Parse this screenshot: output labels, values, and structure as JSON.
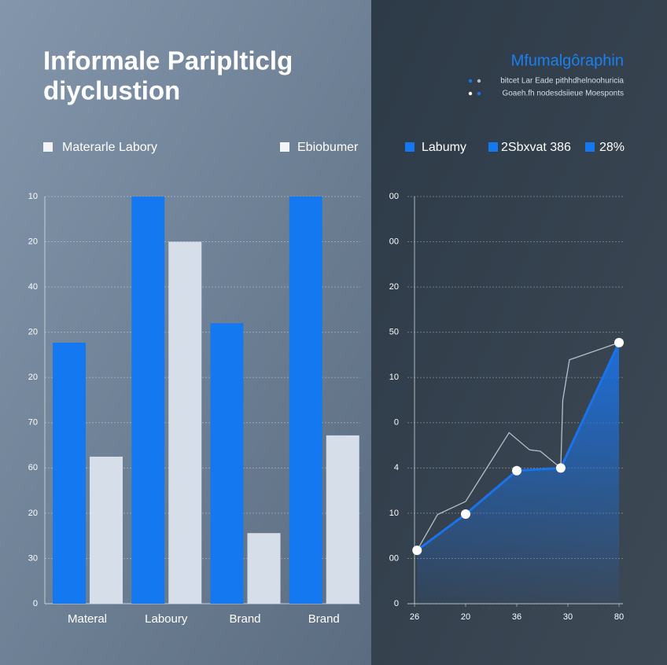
{
  "chart_data": [
    {
      "type": "bar",
      "title": [
        "Informale Pariplticlg",
        "diyclustion"
      ],
      "legend": [
        {
          "name": "Materarle Labory",
          "color": "#f2f4f7"
        },
        {
          "name": "Ebiobumer",
          "color": "#f2f4f7"
        }
      ],
      "categories": [
        "Materal",
        "Laboury",
        "Brand",
        "Brand"
      ],
      "series": [
        {
          "color": "#1479f0",
          "values": [
            5.77,
            9,
            6.2,
            9
          ]
        },
        {
          "color": "#d6dfe9",
          "values": [
            3.25,
            8.0,
            1.56,
            3.72
          ]
        }
      ],
      "ylim": [
        0,
        9
      ],
      "yticks": [
        0,
        {
          "value": 1,
          "label": "30"
        },
        {
          "value": 2,
          "label": "20"
        },
        {
          "value": 3,
          "label": "60"
        },
        {
          "value": 4,
          "label": "70"
        },
        {
          "value": 5,
          "label": "20"
        },
        {
          "value": 6,
          "label": "20"
        },
        {
          "value": 7,
          "label": "40"
        },
        {
          "value": 8,
          "label": "20"
        },
        {
          "value": 9,
          "label": "10"
        }
      ],
      "grid": true
    },
    {
      "type": "line",
      "title": "Mfumalgôraphin",
      "notes": [
        "bitcet Lar Eade pithhdhelnoohuricia",
        "Goaeh.fh nodesdsiieue Moesponts"
      ],
      "legend": [
        {
          "name": "Labumy",
          "color": "#1479f0"
        },
        {
          "name": "2Sbxvat 386",
          "color": "#1479f0"
        },
        {
          "name": "28%",
          "color": "#1479f0"
        }
      ],
      "series": [
        {
          "color": "#1a73e8",
          "x": [
            0.05,
            1.0,
            2.0,
            2.86,
            4.0
          ],
          "values": [
            1.18,
            1.98,
            2.94,
            3.0,
            5.77
          ]
        },
        {
          "color": "#b7c0ca",
          "x": [
            0.05,
            0.45,
            1.0,
            1.85,
            2.25,
            2.46,
            2.86,
            2.9,
            3.03,
            4.0
          ],
          "values": [
            1.18,
            1.97,
            2.26,
            3.78,
            3.4,
            3.37,
            3.0,
            4.5,
            5.39,
            5.77
          ]
        }
      ],
      "xlim": [
        0,
        4
      ],
      "xticks": [
        {
          "value": 0,
          "label": "26"
        },
        {
          "value": 1,
          "label": "20"
        },
        {
          "value": 2,
          "label": "36"
        },
        {
          "value": 3,
          "label": "30"
        },
        {
          "value": 4,
          "label": "80"
        }
      ],
      "ylim": [
        0,
        9
      ],
      "yticks": [
        0,
        {
          "value": 1,
          "label": "00"
        },
        {
          "value": 2,
          "label": "10"
        },
        {
          "value": 3,
          "label": "4"
        },
        {
          "value": 4,
          "label": "0"
        },
        {
          "value": 5,
          "label": "10"
        },
        {
          "value": 6,
          "label": "50"
        },
        {
          "value": 7,
          "label": "20"
        },
        {
          "value": 8,
          "label": "00"
        },
        {
          "value": 9,
          "label": "00"
        }
      ],
      "grid": true
    }
  ]
}
